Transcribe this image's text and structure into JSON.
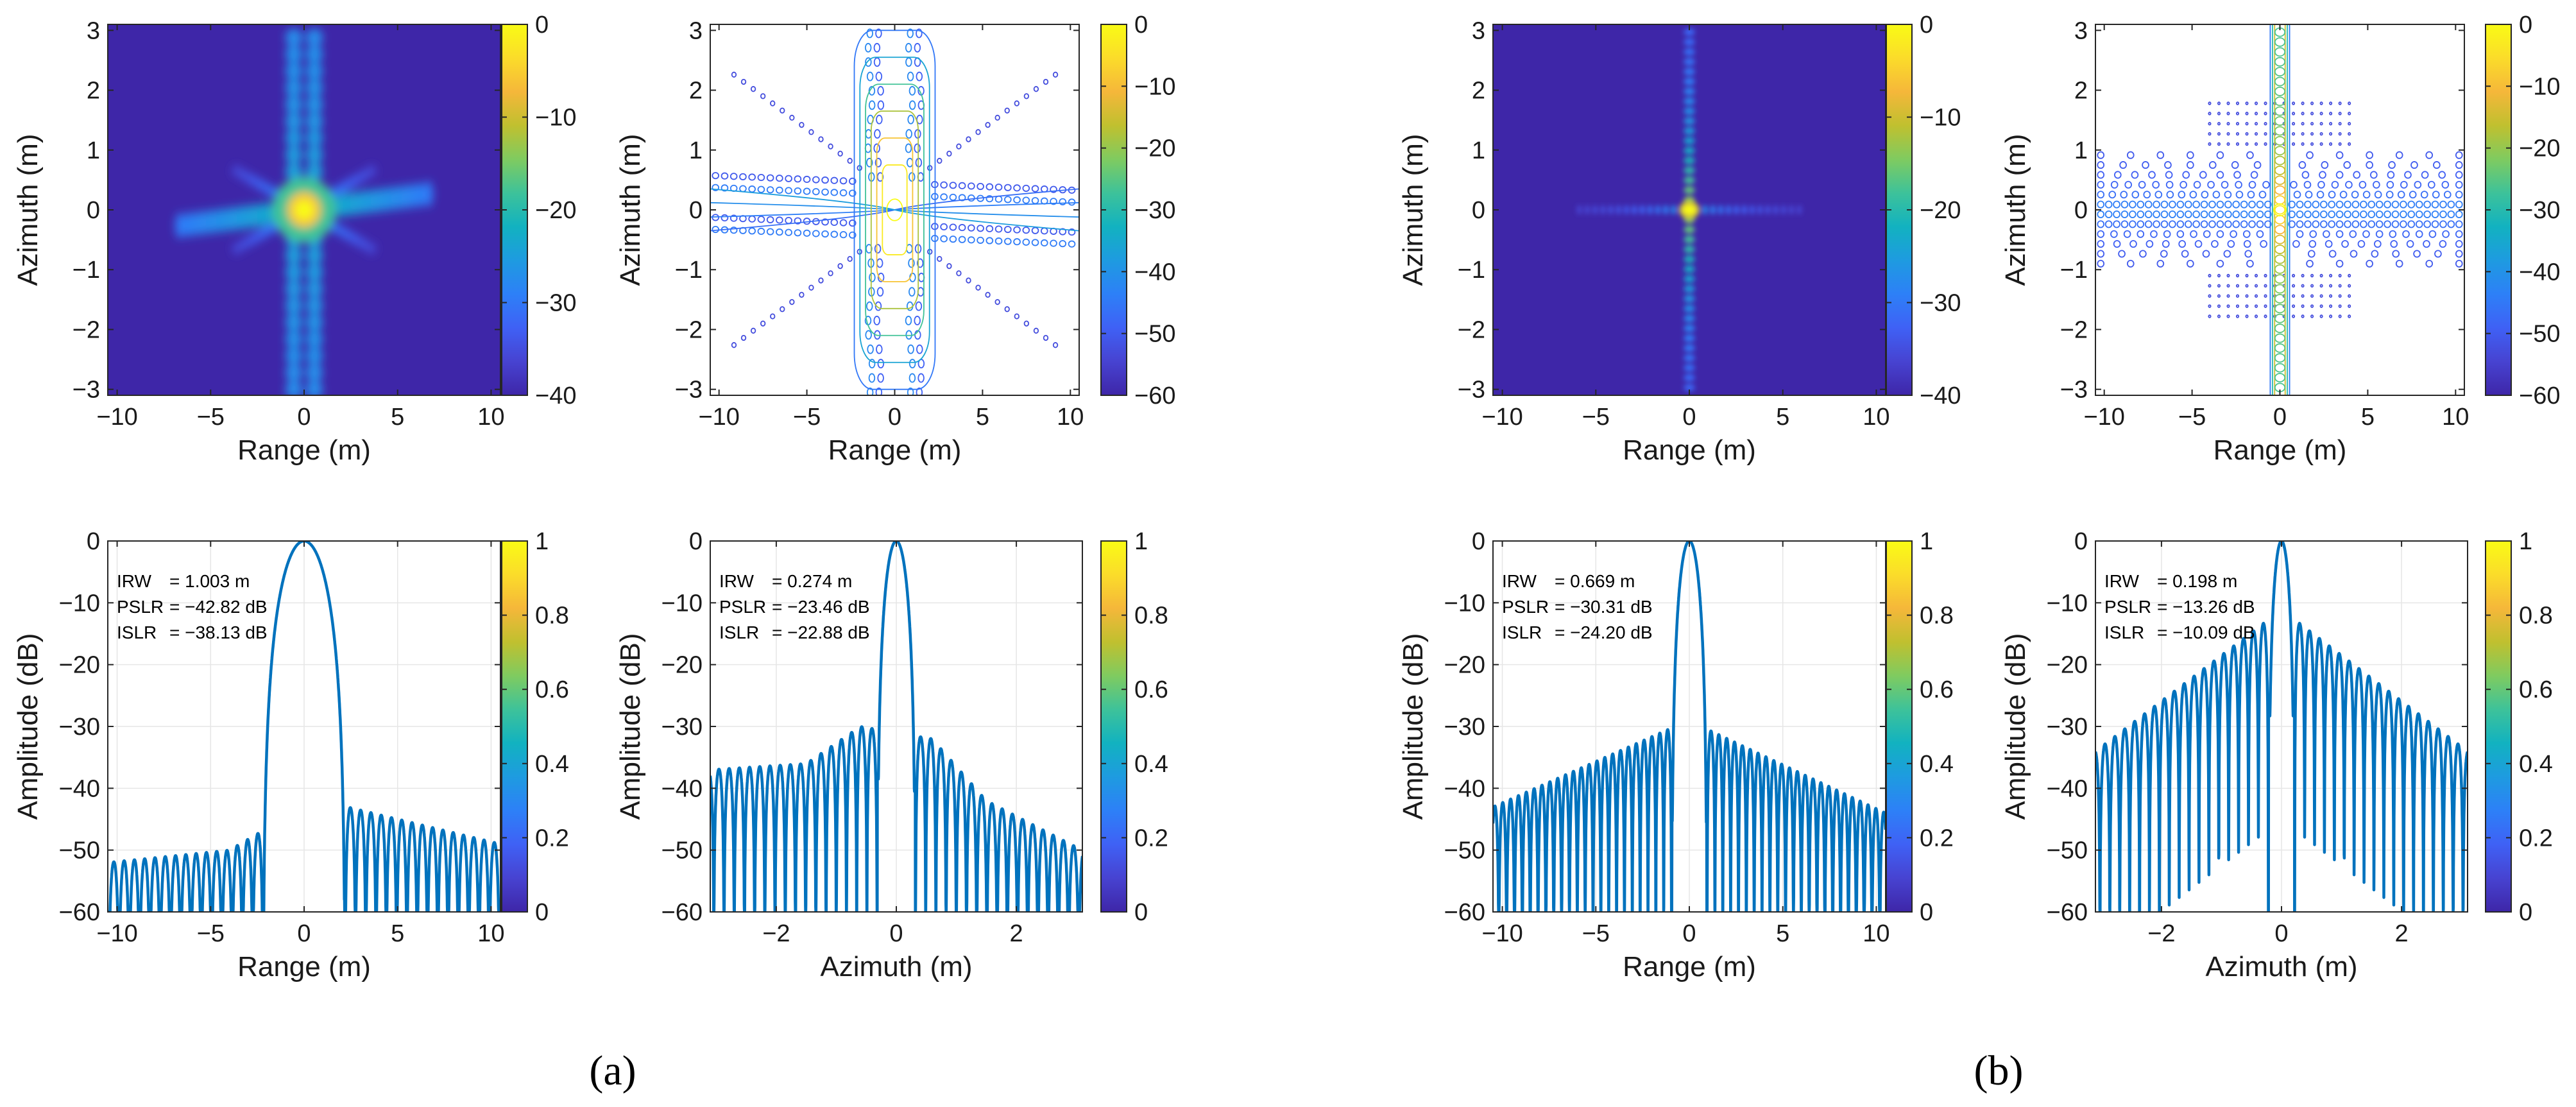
{
  "colors": {
    "trace": "#0072BD",
    "background_2d": "#3E26A8",
    "parula": [
      "#3E26A8",
      "#4743D1",
      "#3F61F5",
      "#2D80F7",
      "#1E9BE0",
      "#12B2C0",
      "#3DC29A",
      "#7FCB60",
      "#C0C02F",
      "#F5B73A",
      "#FBDC2A",
      "#F9FB15"
    ]
  },
  "panel_labels": {
    "a": "(a)",
    "b": "(b)"
  },
  "chart_data": [
    {
      "id": "a-image",
      "type": "heatmap",
      "group": "a",
      "xlabel": "Range (m)",
      "ylabel": "Azimuth (m)",
      "xlim": [
        -10.5,
        10.5
      ],
      "ylim": [
        -3.1,
        3.1
      ],
      "xticks": [
        -10,
        -5,
        0,
        5,
        10
      ],
      "yticks": [
        -3,
        -2,
        -1,
        0,
        1,
        2,
        3
      ],
      "colorbar": {
        "ticks": [
          0,
          -10,
          -20,
          -30,
          -40
        ],
        "range": [
          -40,
          0
        ]
      }
    },
    {
      "id": "a-contour",
      "type": "contour",
      "group": "a",
      "xlabel": "Range (m)",
      "ylabel": "Azimuth (m)",
      "xlim": [
        -10.5,
        10.5
      ],
      "ylim": [
        -3.1,
        3.1
      ],
      "xticks": [
        -10,
        -5,
        0,
        5,
        10
      ],
      "yticks": [
        -3,
        -2,
        -1,
        0,
        1,
        2,
        3
      ],
      "colorbar": {
        "ticks": [
          0,
          -10,
          -20,
          -30,
          -40,
          -50,
          -60
        ],
        "range": [
          -60,
          0
        ]
      }
    },
    {
      "id": "b-image",
      "type": "heatmap",
      "group": "b",
      "xlabel": "Range (m)",
      "ylabel": "Azimuth (m)",
      "xlim": [
        -10.5,
        10.5
      ],
      "ylim": [
        -3.1,
        3.1
      ],
      "xticks": [
        -10,
        -5,
        0,
        5,
        10
      ],
      "yticks": [
        -3,
        -2,
        -1,
        0,
        1,
        2,
        3
      ],
      "colorbar": {
        "ticks": [
          0,
          -10,
          -20,
          -30,
          -40
        ],
        "range": [
          -40,
          0
        ]
      }
    },
    {
      "id": "b-contour",
      "type": "contour",
      "group": "b",
      "xlabel": "Range (m)",
      "ylabel": "Azimuth (m)",
      "xlim": [
        -10.5,
        10.5
      ],
      "ylim": [
        -3.1,
        3.1
      ],
      "xticks": [
        -10,
        -5,
        0,
        5,
        10
      ],
      "yticks": [
        -3,
        -2,
        -1,
        0,
        1,
        2,
        3
      ],
      "colorbar": {
        "ticks": [
          0,
          -10,
          -20,
          -30,
          -40,
          -50,
          -60
        ],
        "range": [
          -60,
          0
        ]
      }
    },
    {
      "id": "a-range-profile",
      "type": "line",
      "group": "a",
      "xlabel": "Range (m)",
      "ylabel": "Amplitude (dB)",
      "xlim": [
        -10.5,
        10.5
      ],
      "ylim": [
        -60,
        0
      ],
      "xticks": [
        -10,
        -5,
        0,
        5,
        10
      ],
      "yticks": [
        0,
        -10,
        -20,
        -30,
        -40,
        -50,
        -60
      ],
      "grid": true,
      "colorbar": {
        "ticks": [
          1,
          0.8,
          0.6,
          0.4,
          0.2,
          0
        ],
        "range": [
          0,
          1
        ]
      },
      "annotations": [
        {
          "label": "IRW",
          "value": "= 1.003 m"
        },
        {
          "label": "PSLR",
          "value": "= −42.82 dB"
        },
        {
          "label": "ISLR",
          "value": "= −38.13 dB"
        }
      ],
      "profile": {
        "mainlobe_halfwidth": 2.2,
        "first_sidelobe_db": [
          -47,
          -43
        ],
        "sidelobe_period": 0.55,
        "sidelobe_trend": [
          [
            -10.5,
            -52
          ],
          [
            -4,
            -50
          ],
          [
            -2.3,
            -47
          ],
          [
            2.3,
            -43
          ],
          [
            10.5,
            -49
          ]
        ]
      }
    },
    {
      "id": "a-azimuth-profile",
      "type": "line",
      "group": "a",
      "xlabel": "Azimuth (m)",
      "ylabel": "Amplitude (dB)",
      "xlim": [
        -3.1,
        3.1
      ],
      "ylim": [
        -60,
        0
      ],
      "xticks": [
        -2,
        0,
        2
      ],
      "yticks": [
        0,
        -10,
        -20,
        -30,
        -40,
        -50,
        -60
      ],
      "grid": true,
      "colorbar": {
        "ticks": [
          1,
          0.8,
          0.6,
          0.4,
          0.2,
          0
        ],
        "range": [
          0,
          1
        ]
      },
      "annotations": [
        {
          "label": "IRW",
          "value": "= 0.274 m"
        },
        {
          "label": "PSLR",
          "value": "= −23.46 dB"
        },
        {
          "label": "ISLR",
          "value": "= −22.88 dB"
        }
      ],
      "profile": {
        "mainlobe_halfwidth": 0.32,
        "first_sidelobe_db": [
          -23.5,
          -25.5
        ],
        "sidelobe_period": 0.17,
        "sidelobe_trend": [
          [
            -3.1,
            -37
          ],
          [
            -1.5,
            -36
          ],
          [
            -0.6,
            -30
          ],
          [
            0.6,
            -32
          ],
          [
            1.5,
            -42
          ],
          [
            3.1,
            -50
          ]
        ]
      }
    },
    {
      "id": "b-range-profile",
      "type": "line",
      "group": "b",
      "xlabel": "Range (m)",
      "ylabel": "Amplitude (dB)",
      "xlim": [
        -10.5,
        10.5
      ],
      "ylim": [
        -60,
        0
      ],
      "xticks": [
        -10,
        -5,
        0,
        5,
        10
      ],
      "yticks": [
        0,
        -10,
        -20,
        -30,
        -40,
        -50,
        -60
      ],
      "grid": true,
      "colorbar": {
        "ticks": [
          1,
          0.8,
          0.6,
          0.4,
          0.2,
          0
        ],
        "range": [
          0,
          1
        ]
      },
      "annotations": [
        {
          "label": "IRW",
          "value": "= 0.669 m"
        },
        {
          "label": "PSLR",
          "value": "= −30.31 dB"
        },
        {
          "label": "ISLR",
          "value": "= −24.20 dB"
        }
      ],
      "profile": {
        "mainlobe_halfwidth": 0.95,
        "first_sidelobe_db": [
          -30.3,
          -30.5
        ],
        "sidelobe_period": 0.42,
        "sidelobe_trend": [
          [
            -10.5,
            -43
          ],
          [
            -1,
            -30.3
          ],
          [
            1,
            -30.5
          ],
          [
            10.5,
            -44
          ]
        ]
      }
    },
    {
      "id": "b-azimuth-profile",
      "type": "line",
      "group": "b",
      "xlabel": "Azimuth (m)",
      "ylabel": "Amplitude (dB)",
      "xlim": [
        -3.1,
        3.1
      ],
      "ylim": [
        -60,
        0
      ],
      "xticks": [
        -2,
        0,
        2
      ],
      "yticks": [
        0,
        -10,
        -20,
        -30,
        -40,
        -50,
        -60
      ],
      "grid": true,
      "colorbar": {
        "ticks": [
          1,
          0.8,
          0.6,
          0.4,
          0.2,
          0
        ],
        "range": [
          0,
          1
        ]
      },
      "annotations": [
        {
          "label": "IRW",
          "value": "= 0.198 m"
        },
        {
          "label": "PSLR",
          "value": "= −13.26 dB"
        },
        {
          "label": "ISLR",
          "value": "= −10.09 dB"
        }
      ],
      "profile": {
        "mainlobe_halfwidth": 0.22,
        "first_sidelobe_db": [
          -13.3,
          -13.3
        ],
        "sidelobe_period": 0.165,
        "sidelobe_trend": [
          [
            -3.1,
            -34
          ],
          [
            -0.3,
            -13.3
          ],
          [
            0.3,
            -13.3
          ],
          [
            3.1,
            -34
          ]
        ]
      }
    }
  ]
}
